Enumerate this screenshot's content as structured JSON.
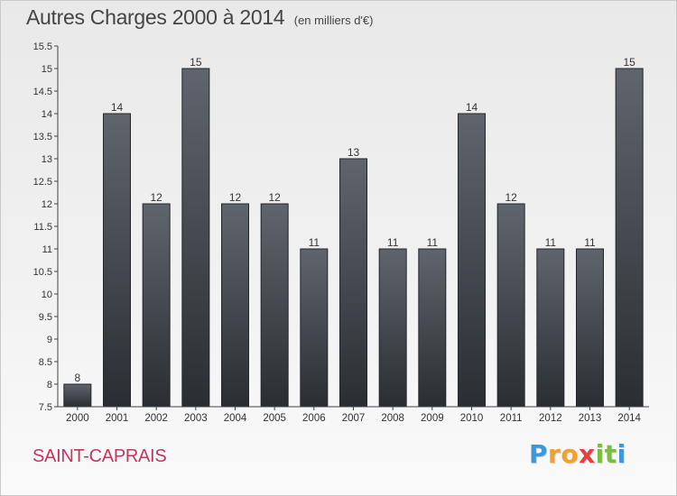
{
  "chart_data": {
    "type": "bar",
    "title": "Autres Charges 2000 à 2014",
    "subtitle": "(en milliers d'€)",
    "categories": [
      "2000",
      "2001",
      "2002",
      "2003",
      "2004",
      "2005",
      "2006",
      "2007",
      "2008",
      "2009",
      "2010",
      "2011",
      "2012",
      "2013",
      "2014"
    ],
    "values": [
      8,
      14,
      12,
      15,
      12,
      12,
      11,
      13,
      11,
      11,
      14,
      12,
      11,
      11,
      15
    ],
    "data_labels": [
      "8",
      "14",
      "12",
      "15",
      "12",
      "12",
      "11",
      "13",
      "11",
      "11",
      "14",
      "12",
      "11",
      "11",
      "15"
    ],
    "ylim": [
      7.5,
      15.5
    ],
    "yticks": [
      "7.5",
      "8",
      "8.5",
      "9",
      "9.5",
      "10",
      "10.5",
      "11",
      "11.5",
      "12",
      "12.5",
      "13",
      "13.5",
      "14",
      "14.5",
      "15",
      "15.5"
    ],
    "grid": false,
    "bar_color": "#3c4046"
  },
  "footer": {
    "place": "SAINT-CAPRAIS",
    "brand": [
      "P",
      "r",
      "o",
      "x",
      "i",
      "t",
      "i"
    ],
    "brand_colors": [
      "#3a9ad9",
      "#f2a22a",
      "#f2a22a",
      "#e2423a",
      "#7bbd3d",
      "#7bbd3d",
      "#3a9ad9"
    ]
  }
}
